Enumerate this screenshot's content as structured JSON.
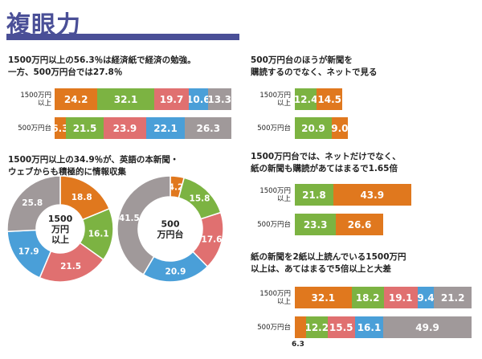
{
  "page_title": "複眼力",
  "colors": {
    "orange": "#e0781e",
    "green": "#7cb342",
    "pink": "#e07070",
    "blue": "#4a9fd8",
    "gray": "#a0999a",
    "title": "#4a4f97"
  },
  "chart_data": [
    {
      "id": "c1",
      "type": "bar",
      "orientation": "horizontal",
      "stacked": true,
      "title": [
        "1500万円以上の56.3％は経済紙で経済の勉強。",
        "一方、500万円台では27.8％"
      ],
      "categories": [
        "1500万円\n以上",
        "500万円台"
      ],
      "segments": [
        {
          "values": [
            24.2,
            32.1,
            19.7,
            10.6,
            13.3
          ],
          "colors": [
            "orange",
            "green",
            "pink",
            "blue",
            "gray"
          ]
        },
        {
          "values": [
            6.3,
            21.5,
            23.9,
            22.1,
            26.3
          ],
          "colors": [
            "orange",
            "green",
            "pink",
            "blue",
            "gray"
          ]
        }
      ]
    },
    {
      "id": "c2",
      "type": "pie",
      "title": [
        "1500万円以上の34.9％が、英語の本新聞・",
        "ウェブからも積極的に情報収集"
      ],
      "pies": [
        {
          "center_label": [
            "1500",
            "万円",
            "以上"
          ],
          "values": [
            18.8,
            16.1,
            21.5,
            17.9,
            25.8
          ],
          "colors": [
            "orange",
            "green",
            "pink",
            "blue",
            "gray"
          ]
        },
        {
          "center_label": [
            "500",
            "万円台"
          ],
          "values": [
            4.2,
            15.8,
            17.6,
            20.9,
            41.5
          ],
          "colors": [
            "orange",
            "green",
            "pink",
            "blue",
            "gray"
          ]
        }
      ]
    },
    {
      "id": "c3",
      "type": "bar",
      "orientation": "horizontal",
      "stacked": true,
      "title": [
        "500万円台のほうが新聞を",
        "購読するのでなく、ネットで見る"
      ],
      "categories": [
        "1500万円\n以上",
        "500万円台"
      ],
      "segments": [
        {
          "values": [
            12.4,
            14.5
          ],
          "colors": [
            "green",
            "orange"
          ]
        },
        {
          "values": [
            20.9,
            9.0
          ],
          "colors": [
            "green",
            "orange"
          ],
          "labels": [
            "20.9",
            "9.0"
          ]
        }
      ]
    },
    {
      "id": "c4",
      "type": "bar",
      "orientation": "horizontal",
      "stacked": true,
      "title": [
        "1500万円台では、ネットだけでなく、",
        "紙の新聞も購読があてはまるで1.65倍"
      ],
      "categories": [
        "1500万円\n以上",
        "500万円台"
      ],
      "segments": [
        {
          "values": [
            21.8,
            43.9
          ],
          "colors": [
            "green",
            "orange"
          ]
        },
        {
          "values": [
            23.3,
            26.6
          ],
          "colors": [
            "green",
            "orange"
          ]
        }
      ]
    },
    {
      "id": "c5",
      "type": "bar",
      "orientation": "horizontal",
      "stacked": true,
      "title": [
        "紙の新聞を2紙以上読んでいる1500万円",
        "以上は、あてはまるで5倍以上と大差"
      ],
      "categories": [
        "1500万円\n以上",
        "500万円台"
      ],
      "segments": [
        {
          "values": [
            32.1,
            18.2,
            19.1,
            9.4,
            21.2
          ],
          "colors": [
            "orange",
            "green",
            "pink",
            "blue",
            "gray"
          ]
        },
        {
          "values": [
            6.3,
            12.2,
            15.5,
            16.1,
            49.9
          ],
          "colors": [
            "orange",
            "green",
            "pink",
            "blue",
            "gray"
          ],
          "outside_label_index": 0
        }
      ]
    }
  ]
}
